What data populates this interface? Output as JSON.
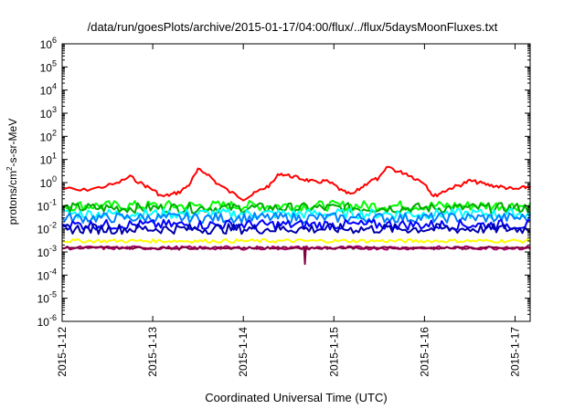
{
  "chart_data": {
    "type": "line",
    "title": "/data/run/goesPlots/archive/2015-01-17/04:00/flux/../flux/5daysMoonFluxes.txt",
    "xlabel": "Coordinated Universal Time (UTC)",
    "ylabel": {
      "prefix": "protons/cm",
      "sup": "2",
      "suffix": "-s-sr-MeV"
    },
    "y_scale": "log",
    "ylim": [
      1e-06,
      1000000.0
    ],
    "y_ticks": [
      {
        "base": "10",
        "exp": "-6"
      },
      {
        "base": "10",
        "exp": "-5"
      },
      {
        "base": "10",
        "exp": "-4"
      },
      {
        "base": "10",
        "exp": "-3"
      },
      {
        "base": "10",
        "exp": "-2"
      },
      {
        "base": "10",
        "exp": "-1"
      },
      {
        "base": "10",
        "exp": "0"
      },
      {
        "base": "10",
        "exp": "1"
      },
      {
        "base": "10",
        "exp": "2"
      },
      {
        "base": "10",
        "exp": "3"
      },
      {
        "base": "10",
        "exp": "4"
      },
      {
        "base": "10",
        "exp": "5"
      },
      {
        "base": "10",
        "exp": "6"
      }
    ],
    "xlim": [
      "2015-01-12",
      "2015-01-17 04:00"
    ],
    "x_ticks": [
      "2015-1-12",
      "2015-1-13",
      "2015-1-14",
      "2015-1-15",
      "2015-1-16",
      "2015-1-17"
    ],
    "grid": false,
    "series": [
      {
        "color": "#ff0000",
        "x_days": [
          0,
          0.2,
          0.4,
          0.6,
          0.75,
          0.9,
          1.0,
          1.1,
          1.2,
          1.3,
          1.4,
          1.5,
          1.6,
          1.7,
          1.85,
          2.0,
          2.1,
          2.2,
          2.3,
          2.4,
          2.5,
          2.6,
          2.7,
          2.8,
          2.9,
          3.0,
          3.1,
          3.2,
          3.3,
          3.4,
          3.5,
          3.6,
          3.7,
          3.8,
          3.9,
          4.0,
          4.1,
          4.2,
          4.3,
          4.4,
          4.5,
          4.6,
          4.7,
          4.8,
          4.9,
          5.0,
          5.1,
          5.17
        ],
        "values": [
          0.6,
          0.45,
          0.6,
          0.9,
          1.8,
          0.8,
          0.5,
          0.25,
          0.3,
          0.4,
          0.8,
          3.5,
          2.5,
          1.0,
          0.4,
          0.2,
          0.3,
          0.5,
          0.8,
          2.5,
          2.0,
          1.6,
          1.3,
          1.0,
          1.2,
          0.8,
          0.4,
          0.3,
          0.6,
          1.2,
          1.5,
          5.0,
          3.0,
          2.5,
          1.5,
          1.0,
          0.25,
          0.4,
          0.6,
          0.8,
          1.2,
          1.0,
          0.8,
          0.7,
          0.6,
          0.5,
          0.6,
          0.7
        ]
      },
      {
        "color": "#00ff00",
        "level": 0.1
      },
      {
        "color": "#00aa00",
        "level": 0.08
      },
      {
        "color": "#00ffff",
        "level": 0.045
      },
      {
        "color": "#0080ff",
        "level": 0.03
      },
      {
        "color": "#0000ff",
        "level": 0.015
      },
      {
        "color": "#0000aa",
        "level": 0.01
      },
      {
        "color": "#ffff00",
        "level": 0.003
      },
      {
        "color": "#aa0066",
        "level": 0.0015
      },
      {
        "color": "#800040",
        "spike_x_days": 2.68,
        "spike_value": 0.0003
      }
    ]
  }
}
